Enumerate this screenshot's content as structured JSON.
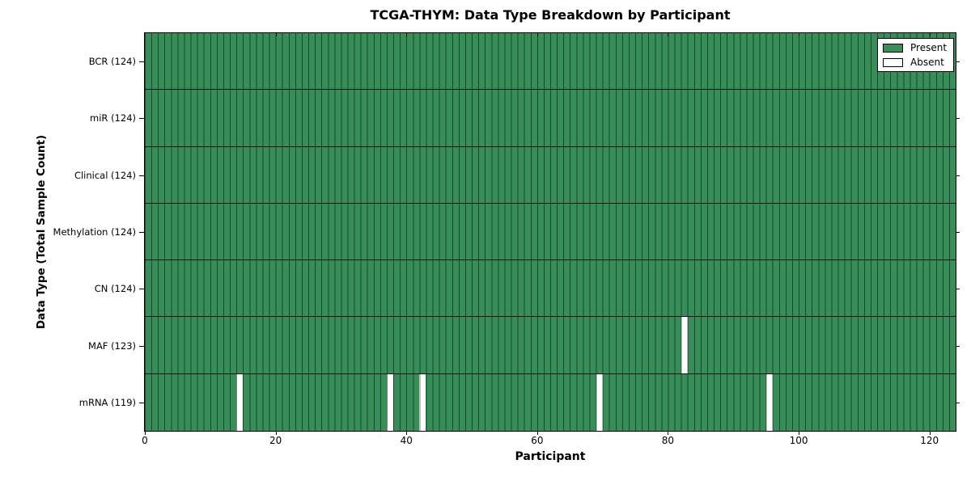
{
  "chart_data": {
    "type": "heatmap",
    "title": "TCGA-THYM: Data Type Breakdown by Participant",
    "xlabel": "Participant",
    "ylabel": "Data Type (Total Sample Count)",
    "xlim": [
      0,
      124
    ],
    "x_ticks": [
      0,
      20,
      40,
      60,
      80,
      100,
      120
    ],
    "n_participants": 124,
    "grid": false,
    "legend_position": "upper right",
    "colors": {
      "present": "#388e58",
      "absent": "#ffffff",
      "cell_edge": "rgba(0,0,0,0.5)",
      "row_edge": "#111111",
      "frame": "#000000"
    },
    "rows": [
      {
        "label": "BCR (124)",
        "data_type": "BCR",
        "total_samples": 124,
        "absent_participants": []
      },
      {
        "label": "miR (124)",
        "data_type": "miR",
        "total_samples": 124,
        "absent_participants": []
      },
      {
        "label": "Clinical (124)",
        "data_type": "Clinical",
        "total_samples": 124,
        "absent_participants": []
      },
      {
        "label": "Methylation (124)",
        "data_type": "Methylation",
        "total_samples": 124,
        "absent_participants": []
      },
      {
        "label": "CN (124)",
        "data_type": "CN",
        "total_samples": 124,
        "absent_participants": []
      },
      {
        "label": "MAF (123)",
        "data_type": "MAF",
        "total_samples": 123,
        "absent_participants": [
          82
        ]
      },
      {
        "label": "mRNA (119)",
        "data_type": "mRNA",
        "total_samples": 119,
        "absent_participants": [
          14,
          37,
          42,
          69,
          95
        ]
      }
    ],
    "legend": [
      {
        "label": "Present",
        "color": "#388e58"
      },
      {
        "label": "Absent",
        "color": "#ffffff"
      }
    ]
  }
}
